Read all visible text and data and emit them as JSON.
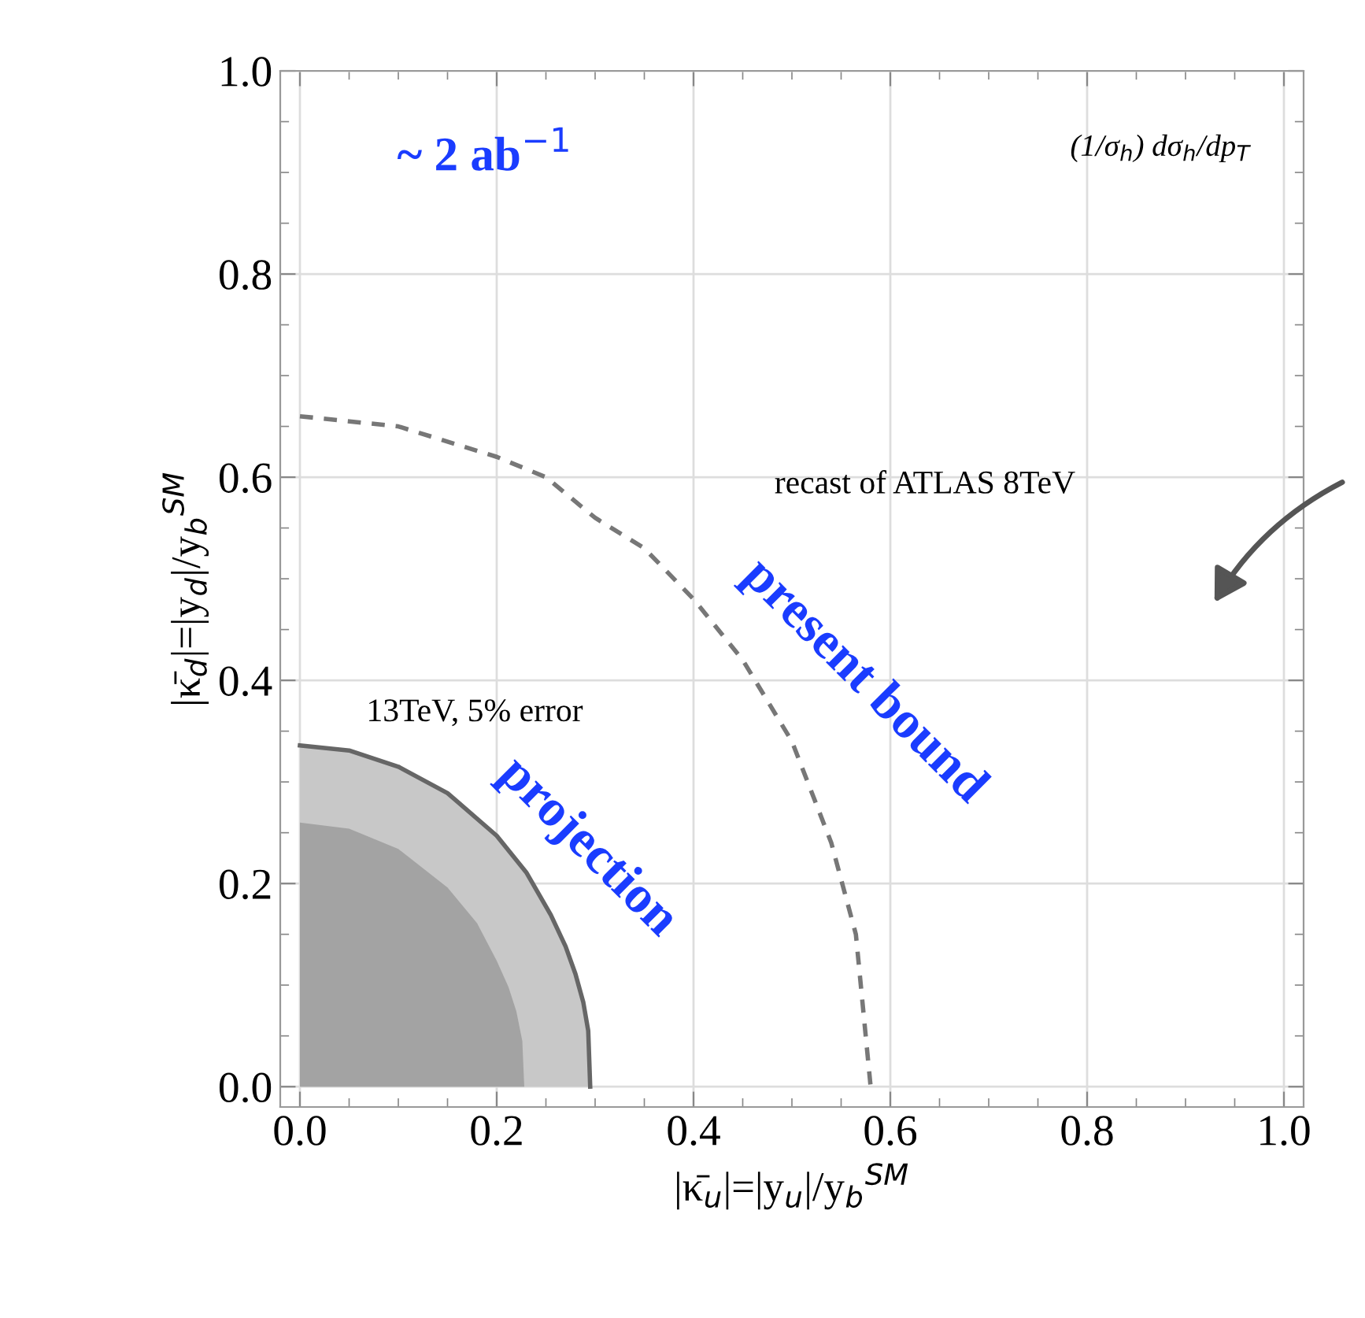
{
  "chart_data": {
    "type": "line",
    "xlabel": "|κ̄$_{u}$|=|y$_{u}$|/y$_{b}$$^{SM}$",
    "ylabel": "|κ̄$_{d}$|=|y$_{d}$|/y$_{b}$$^{SM}$",
    "xlim": [
      -0.02,
      1.02
    ],
    "ylim": [
      -0.02,
      1.0
    ],
    "xticks": [
      {
        "value": 0,
        "label": "0.0"
      },
      {
        "value": 0.2,
        "label": "0.2"
      },
      {
        "value": 0.4,
        "label": "0.4"
      },
      {
        "value": 0.6,
        "label": "0.6"
      },
      {
        "value": 0.8,
        "label": "0.8"
      },
      {
        "value": 1.0,
        "label": "1.0"
      }
    ],
    "yticks": [
      {
        "value": 0,
        "label": "0.0"
      },
      {
        "value": 0.2,
        "label": "0.2"
      },
      {
        "value": 0.4,
        "label": "0.4"
      },
      {
        "value": 0.6,
        "label": "0.6"
      },
      {
        "value": 0.8,
        "label": "0.8"
      },
      {
        "value": 1.0,
        "label": "1.0"
      }
    ],
    "grid": true,
    "series": [
      {
        "type": "area",
        "color": "#c8c8c8",
        "x": [
          0,
          0.05,
          0.1,
          0.15,
          0.2,
          0.23,
          0.255,
          0.27,
          0.28,
          0.288,
          0.293,
          0.295
        ],
        "values": [
          0.336,
          0.331,
          0.315,
          0.289,
          0.247,
          0.211,
          0.169,
          0.138,
          0.111,
          0.083,
          0.055,
          0.0
        ]
      },
      {
        "type": "area",
        "color": "#a3a3a3",
        "x": [
          0,
          0.05,
          0.1,
          0.15,
          0.18,
          0.2,
          0.212,
          0.22,
          0.226,
          0.228
        ],
        "values": [
          0.26,
          0.254,
          0.234,
          0.196,
          0.161,
          0.124,
          0.098,
          0.074,
          0.045,
          0.0
        ]
      },
      {
        "color": "#777777",
        "line_style": "dashed",
        "x": [
          0,
          0.1,
          0.2,
          0.25,
          0.3,
          0.35,
          0.4,
          0.45,
          0.5,
          0.54,
          0.565,
          0.58
        ],
        "values": [
          0.66,
          0.65,
          0.62,
          0.6,
          0.56,
          0.53,
          0.48,
          0.42,
          0.34,
          0.24,
          0.15,
          0.0
        ]
      }
    ],
    "annotations": [
      "~ 2 ab$^{−1}$",
      "(1/σ$_{h}$) dσ$_{h}$/dp$_{T}$",
      "recast of ATLAS 8TeV",
      "present bound",
      "13TeV, 5% error",
      "projection"
    ]
  }
}
